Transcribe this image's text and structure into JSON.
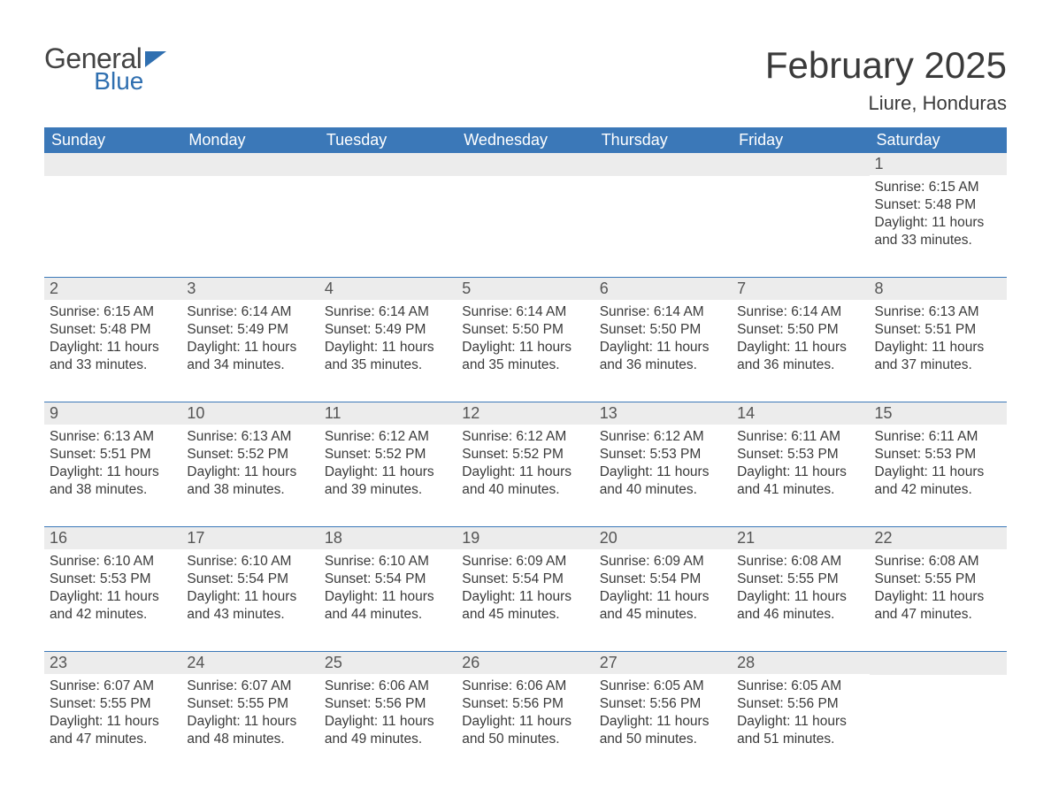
{
  "logo": {
    "text1": "General",
    "text2": "Blue"
  },
  "title": "February 2025",
  "location": "Liure, Honduras",
  "colors": {
    "header_bg": "#3b78b8",
    "header_text": "#ffffff",
    "daynum_bg": "#ececec",
    "border": "#3b78b8",
    "body_text": "#3a3a3a",
    "logo_gray": "#444444",
    "logo_blue": "#2f6fb0"
  },
  "weekdays": [
    "Sunday",
    "Monday",
    "Tuesday",
    "Wednesday",
    "Thursday",
    "Friday",
    "Saturday"
  ],
  "weeks": [
    [
      {
        "empty": true
      },
      {
        "empty": true
      },
      {
        "empty": true
      },
      {
        "empty": true
      },
      {
        "empty": true
      },
      {
        "empty": true
      },
      {
        "num": "1",
        "sunrise": "Sunrise: 6:15 AM",
        "sunset": "Sunset: 5:48 PM",
        "daylight": "Daylight: 11 hours and 33 minutes."
      }
    ],
    [
      {
        "num": "2",
        "sunrise": "Sunrise: 6:15 AM",
        "sunset": "Sunset: 5:48 PM",
        "daylight": "Daylight: 11 hours and 33 minutes."
      },
      {
        "num": "3",
        "sunrise": "Sunrise: 6:14 AM",
        "sunset": "Sunset: 5:49 PM",
        "daylight": "Daylight: 11 hours and 34 minutes."
      },
      {
        "num": "4",
        "sunrise": "Sunrise: 6:14 AM",
        "sunset": "Sunset: 5:49 PM",
        "daylight": "Daylight: 11 hours and 35 minutes."
      },
      {
        "num": "5",
        "sunrise": "Sunrise: 6:14 AM",
        "sunset": "Sunset: 5:50 PM",
        "daylight": "Daylight: 11 hours and 35 minutes."
      },
      {
        "num": "6",
        "sunrise": "Sunrise: 6:14 AM",
        "sunset": "Sunset: 5:50 PM",
        "daylight": "Daylight: 11 hours and 36 minutes."
      },
      {
        "num": "7",
        "sunrise": "Sunrise: 6:14 AM",
        "sunset": "Sunset: 5:50 PM",
        "daylight": "Daylight: 11 hours and 36 minutes."
      },
      {
        "num": "8",
        "sunrise": "Sunrise: 6:13 AM",
        "sunset": "Sunset: 5:51 PM",
        "daylight": "Daylight: 11 hours and 37 minutes."
      }
    ],
    [
      {
        "num": "9",
        "sunrise": "Sunrise: 6:13 AM",
        "sunset": "Sunset: 5:51 PM",
        "daylight": "Daylight: 11 hours and 38 minutes."
      },
      {
        "num": "10",
        "sunrise": "Sunrise: 6:13 AM",
        "sunset": "Sunset: 5:52 PM",
        "daylight": "Daylight: 11 hours and 38 minutes."
      },
      {
        "num": "11",
        "sunrise": "Sunrise: 6:12 AM",
        "sunset": "Sunset: 5:52 PM",
        "daylight": "Daylight: 11 hours and 39 minutes."
      },
      {
        "num": "12",
        "sunrise": "Sunrise: 6:12 AM",
        "sunset": "Sunset: 5:52 PM",
        "daylight": "Daylight: 11 hours and 40 minutes."
      },
      {
        "num": "13",
        "sunrise": "Sunrise: 6:12 AM",
        "sunset": "Sunset: 5:53 PM",
        "daylight": "Daylight: 11 hours and 40 minutes."
      },
      {
        "num": "14",
        "sunrise": "Sunrise: 6:11 AM",
        "sunset": "Sunset: 5:53 PM",
        "daylight": "Daylight: 11 hours and 41 minutes."
      },
      {
        "num": "15",
        "sunrise": "Sunrise: 6:11 AM",
        "sunset": "Sunset: 5:53 PM",
        "daylight": "Daylight: 11 hours and 42 minutes."
      }
    ],
    [
      {
        "num": "16",
        "sunrise": "Sunrise: 6:10 AM",
        "sunset": "Sunset: 5:53 PM",
        "daylight": "Daylight: 11 hours and 42 minutes."
      },
      {
        "num": "17",
        "sunrise": "Sunrise: 6:10 AM",
        "sunset": "Sunset: 5:54 PM",
        "daylight": "Daylight: 11 hours and 43 minutes."
      },
      {
        "num": "18",
        "sunrise": "Sunrise: 6:10 AM",
        "sunset": "Sunset: 5:54 PM",
        "daylight": "Daylight: 11 hours and 44 minutes."
      },
      {
        "num": "19",
        "sunrise": "Sunrise: 6:09 AM",
        "sunset": "Sunset: 5:54 PM",
        "daylight": "Daylight: 11 hours and 45 minutes."
      },
      {
        "num": "20",
        "sunrise": "Sunrise: 6:09 AM",
        "sunset": "Sunset: 5:54 PM",
        "daylight": "Daylight: 11 hours and 45 minutes."
      },
      {
        "num": "21",
        "sunrise": "Sunrise: 6:08 AM",
        "sunset": "Sunset: 5:55 PM",
        "daylight": "Daylight: 11 hours and 46 minutes."
      },
      {
        "num": "22",
        "sunrise": "Sunrise: 6:08 AM",
        "sunset": "Sunset: 5:55 PM",
        "daylight": "Daylight: 11 hours and 47 minutes."
      }
    ],
    [
      {
        "num": "23",
        "sunrise": "Sunrise: 6:07 AM",
        "sunset": "Sunset: 5:55 PM",
        "daylight": "Daylight: 11 hours and 47 minutes."
      },
      {
        "num": "24",
        "sunrise": "Sunrise: 6:07 AM",
        "sunset": "Sunset: 5:55 PM",
        "daylight": "Daylight: 11 hours and 48 minutes."
      },
      {
        "num": "25",
        "sunrise": "Sunrise: 6:06 AM",
        "sunset": "Sunset: 5:56 PM",
        "daylight": "Daylight: 11 hours and 49 minutes."
      },
      {
        "num": "26",
        "sunrise": "Sunrise: 6:06 AM",
        "sunset": "Sunset: 5:56 PM",
        "daylight": "Daylight: 11 hours and 50 minutes."
      },
      {
        "num": "27",
        "sunrise": "Sunrise: 6:05 AM",
        "sunset": "Sunset: 5:56 PM",
        "daylight": "Daylight: 11 hours and 50 minutes."
      },
      {
        "num": "28",
        "sunrise": "Sunrise: 6:05 AM",
        "sunset": "Sunset: 5:56 PM",
        "daylight": "Daylight: 11 hours and 51 minutes."
      },
      {
        "empty": true
      }
    ]
  ]
}
